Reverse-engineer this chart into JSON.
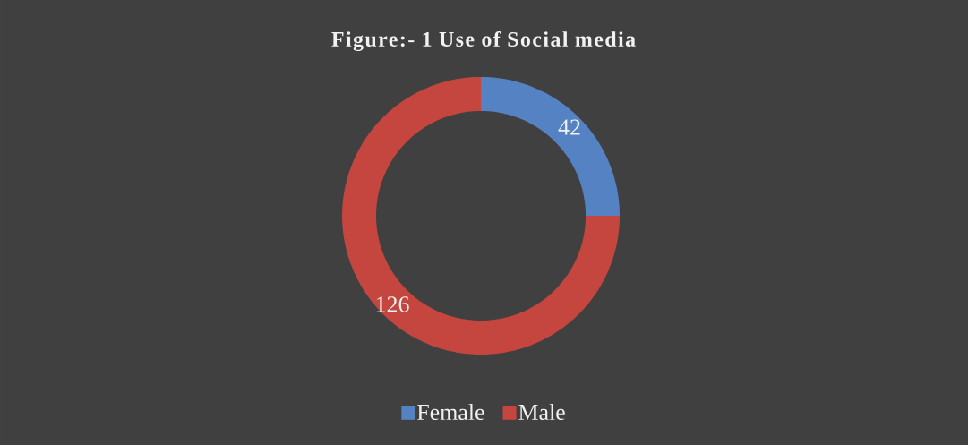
{
  "chart_data": {
    "type": "donut",
    "title": "Figure:- 1 Use of Social media",
    "categories": [
      "Female",
      "Male"
    ],
    "values": [
      42,
      126
    ],
    "colors": [
      "#5582c2",
      "#c5463f"
    ],
    "data_labels": true,
    "legend": "bottom"
  }
}
